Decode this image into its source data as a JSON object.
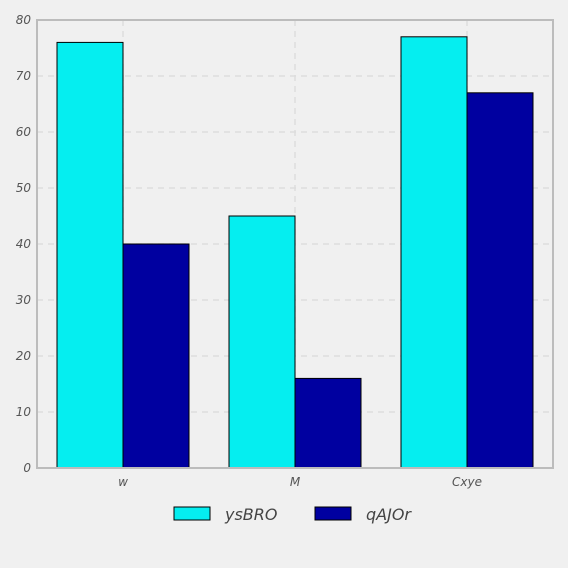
{
  "chart_data": {
    "type": "bar",
    "categories": [
      "w",
      "M",
      "Cxye"
    ],
    "series": [
      {
        "name": "ysBRO",
        "values": [
          76,
          45,
          77
        ],
        "color": "#05eef0"
      },
      {
        "name": "qAJOr",
        "values": [
          40,
          16,
          67
        ],
        "color": "#0000a0"
      }
    ],
    "ylim": [
      0,
      80
    ],
    "yticks": [
      0,
      10,
      20,
      30,
      40,
      50,
      60,
      70,
      80
    ],
    "grid": true,
    "legend_position": "bottom-center"
  }
}
